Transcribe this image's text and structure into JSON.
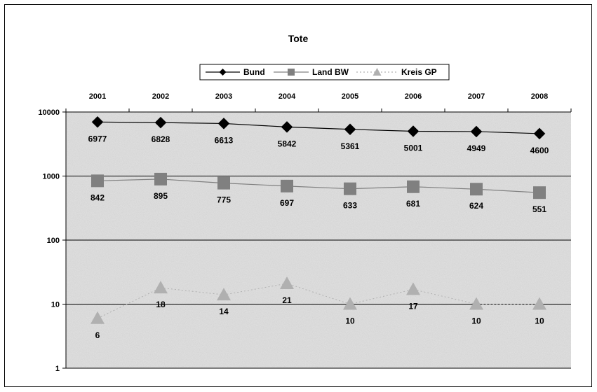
{
  "chart_data": {
    "type": "line",
    "title": "Tote",
    "categories": [
      "2001",
      "2002",
      "2003",
      "2004",
      "2005",
      "2006",
      "2007",
      "2008"
    ],
    "y_scale": "log",
    "ylim": [
      1,
      10000
    ],
    "y_ticks": [
      "10000",
      "1000",
      "100",
      "10",
      "1"
    ],
    "y_tick_values": [
      10000,
      1000,
      100,
      10,
      1
    ],
    "xaxis_position": "top",
    "grid": true,
    "legend": "top-center",
    "series": [
      {
        "name": "Bund",
        "values": [
          6977,
          6828,
          6613,
          5842,
          5361,
          5001,
          4949,
          4600
        ],
        "labels": [
          "6977",
          "6828",
          "6613",
          "5842",
          "5361",
          "5001",
          "4949",
          "4600"
        ],
        "color": "#000000",
        "marker": "diamond",
        "line": "solid"
      },
      {
        "name": "Land BW",
        "values": [
          842,
          895,
          775,
          697,
          633,
          681,
          624,
          551
        ],
        "labels": [
          "842",
          "895",
          "775",
          "697",
          "633",
          "681",
          "624",
          "551"
        ],
        "color": "#808080",
        "marker": "square",
        "line": "solid"
      },
      {
        "name": "Kreis GP",
        "values": [
          6,
          18,
          14,
          21,
          10,
          17,
          10,
          10
        ],
        "labels": [
          "6",
          "18",
          "14",
          "21",
          "10",
          "17",
          "10",
          "10"
        ],
        "color": "#b0b0b0",
        "marker": "triangle",
        "line": "dotted"
      }
    ]
  }
}
